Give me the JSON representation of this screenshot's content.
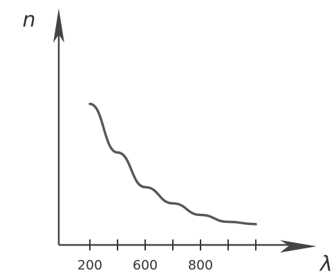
{
  "chart_data": {
    "type": "line",
    "y_label": "n",
    "x_label": "λ",
    "categories": [
      "200",
      null,
      "600",
      null,
      "800",
      null,
      null
    ],
    "values": [
      6.1,
      4.0,
      2.5,
      1.8,
      1.3,
      1.0,
      0.9
    ],
    "ylim": [
      0,
      10
    ],
    "color": "#3a3a3a"
  }
}
